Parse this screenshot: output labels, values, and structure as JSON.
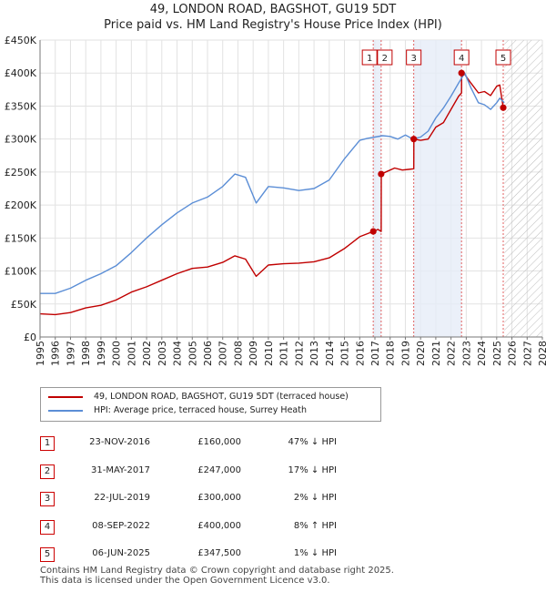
{
  "chart_data": {
    "type": "line",
    "title": "49, LONDON ROAD, BAGSHOT, GU19 5DT",
    "subtitle": "Price paid vs. HM Land Registry's House Price Index (HPI)",
    "xlim": [
      1995,
      2028
    ],
    "ylim": [
      0,
      450000
    ],
    "x_ticks": [
      1995,
      1996,
      1997,
      1998,
      1999,
      2000,
      2001,
      2002,
      2003,
      2004,
      2005,
      2006,
      2007,
      2008,
      2009,
      2010,
      2011,
      2012,
      2013,
      2014,
      2015,
      2016,
      2017,
      2018,
      2019,
      2020,
      2021,
      2022,
      2023,
      2024,
      2025,
      2026,
      2027,
      2028
    ],
    "y_ticks": [
      0,
      50000,
      100000,
      150000,
      200000,
      250000,
      300000,
      350000,
      400000,
      450000
    ],
    "y_tick_labels": [
      "£0",
      "£50K",
      "£100K",
      "£150K",
      "£200K",
      "£250K",
      "£300K",
      "£350K",
      "£400K",
      "£450K"
    ],
    "grid": true,
    "forecast_start": 2025.5,
    "series": [
      {
        "name": "HPI: Average price, terraced house, Surrey Heath",
        "color": "#5b8ed6",
        "x": [
          1995,
          1996,
          1997,
          1998,
          1999,
          2000,
          2001,
          2002,
          2003,
          2004,
          2005,
          2006,
          2007,
          2007.8,
          2008.5,
          2009.2,
          2010,
          2011,
          2012,
          2013,
          2014,
          2015,
          2016,
          2016.5,
          2017,
          2017.5,
          2018,
          2018.5,
          2019,
          2019.5,
          2020,
          2020.5,
          2021,
          2021.5,
          2022,
          2022.5,
          2022.9,
          2023.3,
          2023.8,
          2024.2,
          2024.6,
          2025,
          2025.2,
          2025.5
        ],
        "values": [
          66000,
          66000,
          74000,
          86000,
          96000,
          108000,
          128000,
          150000,
          170000,
          188000,
          203000,
          212000,
          228000,
          247000,
          242000,
          203000,
          228000,
          226000,
          222000,
          225000,
          238000,
          270000,
          298000,
          301000,
          303000,
          305000,
          304000,
          300000,
          306000,
          300000,
          303000,
          312000,
          332000,
          347000,
          365000,
          385000,
          400000,
          378000,
          355000,
          352000,
          345000,
          355000,
          362000,
          355000
        ]
      },
      {
        "name": "49, LONDON ROAD, BAGSHOT, GU19 5DT (terraced house)",
        "color": "#c00000",
        "x": [
          1995,
          1996,
          1997,
          1998,
          1999,
          2000,
          2001,
          2002,
          2003,
          2004,
          2005,
          2006,
          2007,
          2007.8,
          2008.5,
          2009.2,
          2010,
          2011,
          2012,
          2013,
          2014,
          2015,
          2016,
          2016.89,
          2016.9,
          2017.2,
          2017.41,
          2017.42,
          2017.8,
          2018.3,
          2018.8,
          2019.2,
          2019.55,
          2019.56,
          2020,
          2020.5,
          2021,
          2021.5,
          2022,
          2022.5,
          2022.69,
          2022.7,
          2022.9,
          2023.3,
          2023.8,
          2024.2,
          2024.6,
          2025,
          2025.2,
          2025.43
        ],
        "values": [
          35000,
          34000,
          37000,
          44000,
          48000,
          56000,
          68000,
          76000,
          86000,
          96000,
          104000,
          106000,
          113000,
          123000,
          118000,
          92000,
          109000,
          111000,
          112000,
          114000,
          120000,
          134000,
          152000,
          160000,
          160000,
          163000,
          160000,
          247000,
          251000,
          256000,
          253000,
          254000,
          255000,
          300000,
          298000,
          300000,
          318000,
          325000,
          345000,
          365000,
          370000,
          400000,
          398000,
          385000,
          370000,
          372000,
          366000,
          380000,
          382000,
          347500
        ]
      }
    ],
    "transactions": [
      {
        "id": "1",
        "date": "23-NOV-2016",
        "price": "£160,000",
        "hpi": "47% ↓ HPI",
        "year": 2016.89,
        "value": 160000
      },
      {
        "id": "2",
        "date": "31-MAY-2017",
        "price": "£247,000",
        "hpi": "17% ↓ HPI",
        "year": 2017.41,
        "value": 247000
      },
      {
        "id": "3",
        "date": "22-JUL-2019",
        "price": "£300,000",
        "hpi": "2% ↓ HPI",
        "year": 2019.55,
        "value": 300000
      },
      {
        "id": "4",
        "date": "08-SEP-2022",
        "price": "£400,000",
        "hpi": "8% ↑ HPI",
        "year": 2022.69,
        "value": 400000
      },
      {
        "id": "5",
        "date": "06-JUN-2025",
        "price": "£347,500",
        "hpi": "1% ↓ HPI",
        "year": 2025.43,
        "value": 347500
      }
    ],
    "legend": [
      {
        "label": "49, LONDON ROAD, BAGSHOT, GU19 5DT (terraced house)",
        "color": "#c00000"
      },
      {
        "label": "HPI: Average price, terraced house, Surrey Heath",
        "color": "#5b8ed6"
      }
    ]
  },
  "footer": {
    "line1": "Contains HM Land Registry data © Crown copyright and database right 2025.",
    "line2": "This data is licensed under the Open Government Licence v3.0."
  }
}
